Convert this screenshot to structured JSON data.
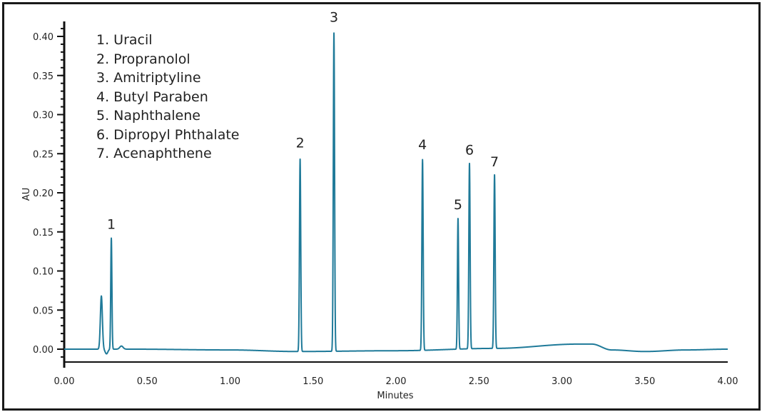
{
  "chart_data": {
    "type": "line",
    "title": "",
    "xlabel": "Minutes",
    "ylabel": "AU",
    "xlim": [
      0.0,
      4.0
    ],
    "ylim": [
      -0.025,
      0.425
    ],
    "x_ticks": [
      "0.00",
      "0.50",
      "1.00",
      "1.50",
      "2.00",
      "2.50",
      "3.00",
      "3.50",
      "4.00"
    ],
    "x_tick_values": [
      0,
      0.5,
      1.0,
      1.5,
      2.0,
      2.5,
      3.0,
      3.5,
      4.0
    ],
    "y_ticks": [
      "0.00",
      "0.05",
      "0.10",
      "0.15",
      "0.20",
      "0.25",
      "0.30",
      "0.35",
      "0.40"
    ],
    "y_tick_values": [
      0,
      0.05,
      0.1,
      0.15,
      0.2,
      0.25,
      0.3,
      0.35,
      0.4
    ],
    "grid": false,
    "line_color": "#1f7a99",
    "legend": {
      "position": "upper-left",
      "entries": [
        "1. Uracil",
        "2. Propranolol",
        "3. Amitriptyline",
        "4. Butyl Paraben",
        "5. Naphthalene",
        "6. Dipropyl Phthalate",
        "7. Acenaphthene"
      ]
    },
    "peaks": [
      {
        "label": "",
        "compound": "unlabeled (void disturbance)",
        "time": 0.224,
        "height": 0.068,
        "width": 0.006
      },
      {
        "label": "1",
        "compound": "Uracil",
        "time": 0.284,
        "height": 0.142,
        "width": 0.0035
      },
      {
        "label": "2",
        "compound": "Propranolol",
        "time": 1.422,
        "height": 0.246,
        "width": 0.0038
      },
      {
        "label": "3",
        "compound": "Amitriptyline",
        "time": 1.626,
        "height": 0.407,
        "width": 0.0038
      },
      {
        "label": "4",
        "compound": "Butyl Paraben",
        "time": 2.16,
        "height": 0.244,
        "width": 0.0038
      },
      {
        "label": "5",
        "compound": "Naphthalene",
        "time": 2.374,
        "height": 0.167,
        "width": 0.0035
      },
      {
        "label": "6",
        "compound": "Dipropyl Phthalate",
        "time": 2.443,
        "height": 0.237,
        "width": 0.0038
      },
      {
        "label": "7",
        "compound": "Acenaphthene",
        "time": 2.594,
        "height": 0.222,
        "width": 0.0038
      }
    ],
    "minor_features": [
      {
        "time": 0.255,
        "height": -0.006,
        "width": 0.008
      },
      {
        "time": 0.345,
        "height": 0.004,
        "width": 0.01
      }
    ],
    "baseline": {
      "points": [
        [
          0.0,
          0.0
        ],
        [
          0.4,
          0.0
        ],
        [
          1.0,
          -0.001
        ],
        [
          1.4,
          -0.003
        ],
        [
          2.0,
          -0.002
        ],
        [
          2.6,
          0.001
        ],
        [
          3.1,
          0.0065
        ],
        [
          3.18,
          0.0065
        ],
        [
          3.3,
          -0.001
        ],
        [
          3.5,
          -0.003
        ],
        [
          3.75,
          -0.001
        ],
        [
          4.0,
          0.0
        ]
      ]
    }
  }
}
